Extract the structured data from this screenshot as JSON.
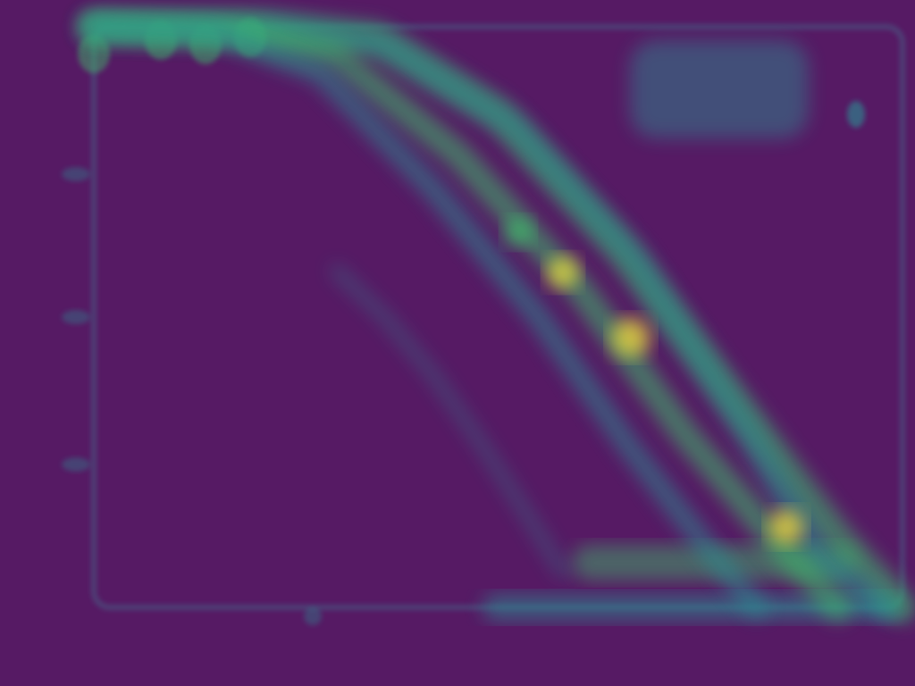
{
  "chart_data": {
    "type": "line",
    "title": "",
    "xlabel": "",
    "ylabel": "",
    "render": "heatmap-overlay",
    "colors": {
      "background": "#561a64",
      "frame": "#3f8a9a",
      "low": "#2c8f93",
      "mid": "#3fbf6a",
      "high": "#f3e33a"
    },
    "xlim": [
      0,
      100
    ],
    "ylim": [
      0,
      100
    ],
    "series": [
      {
        "values": [
          [
            0,
            100
          ],
          [
            20,
            100
          ],
          [
            35,
            98
          ],
          [
            50,
            85
          ],
          [
            65,
            62
          ],
          [
            80,
            34
          ],
          [
            92,
            12
          ],
          [
            100,
            0
          ]
        ]
      },
      {
        "values": [
          [
            0,
            100
          ],
          [
            22,
            100
          ],
          [
            36,
            97
          ],
          [
            52,
            83
          ],
          [
            67,
            60
          ],
          [
            81,
            30
          ],
          [
            90,
            8
          ],
          [
            98,
            0
          ]
        ]
      },
      {
        "values": [
          [
            0,
            100
          ],
          [
            18,
            99
          ],
          [
            30,
            95
          ],
          [
            45,
            78
          ],
          [
            60,
            55
          ],
          [
            73,
            30
          ],
          [
            84,
            12
          ],
          [
            92,
            0
          ]
        ]
      },
      {
        "values": [
          [
            0,
            100
          ],
          [
            15,
            99
          ],
          [
            28,
            92
          ],
          [
            42,
            72
          ],
          [
            55,
            50
          ],
          [
            66,
            28
          ],
          [
            76,
            10
          ],
          [
            82,
            0
          ]
        ]
      },
      {
        "values": [
          [
            30,
            58
          ],
          [
            36,
            50
          ],
          [
            42,
            40
          ],
          [
            48,
            28
          ],
          [
            54,
            15
          ],
          [
            58,
            6
          ]
        ]
      }
    ]
  }
}
